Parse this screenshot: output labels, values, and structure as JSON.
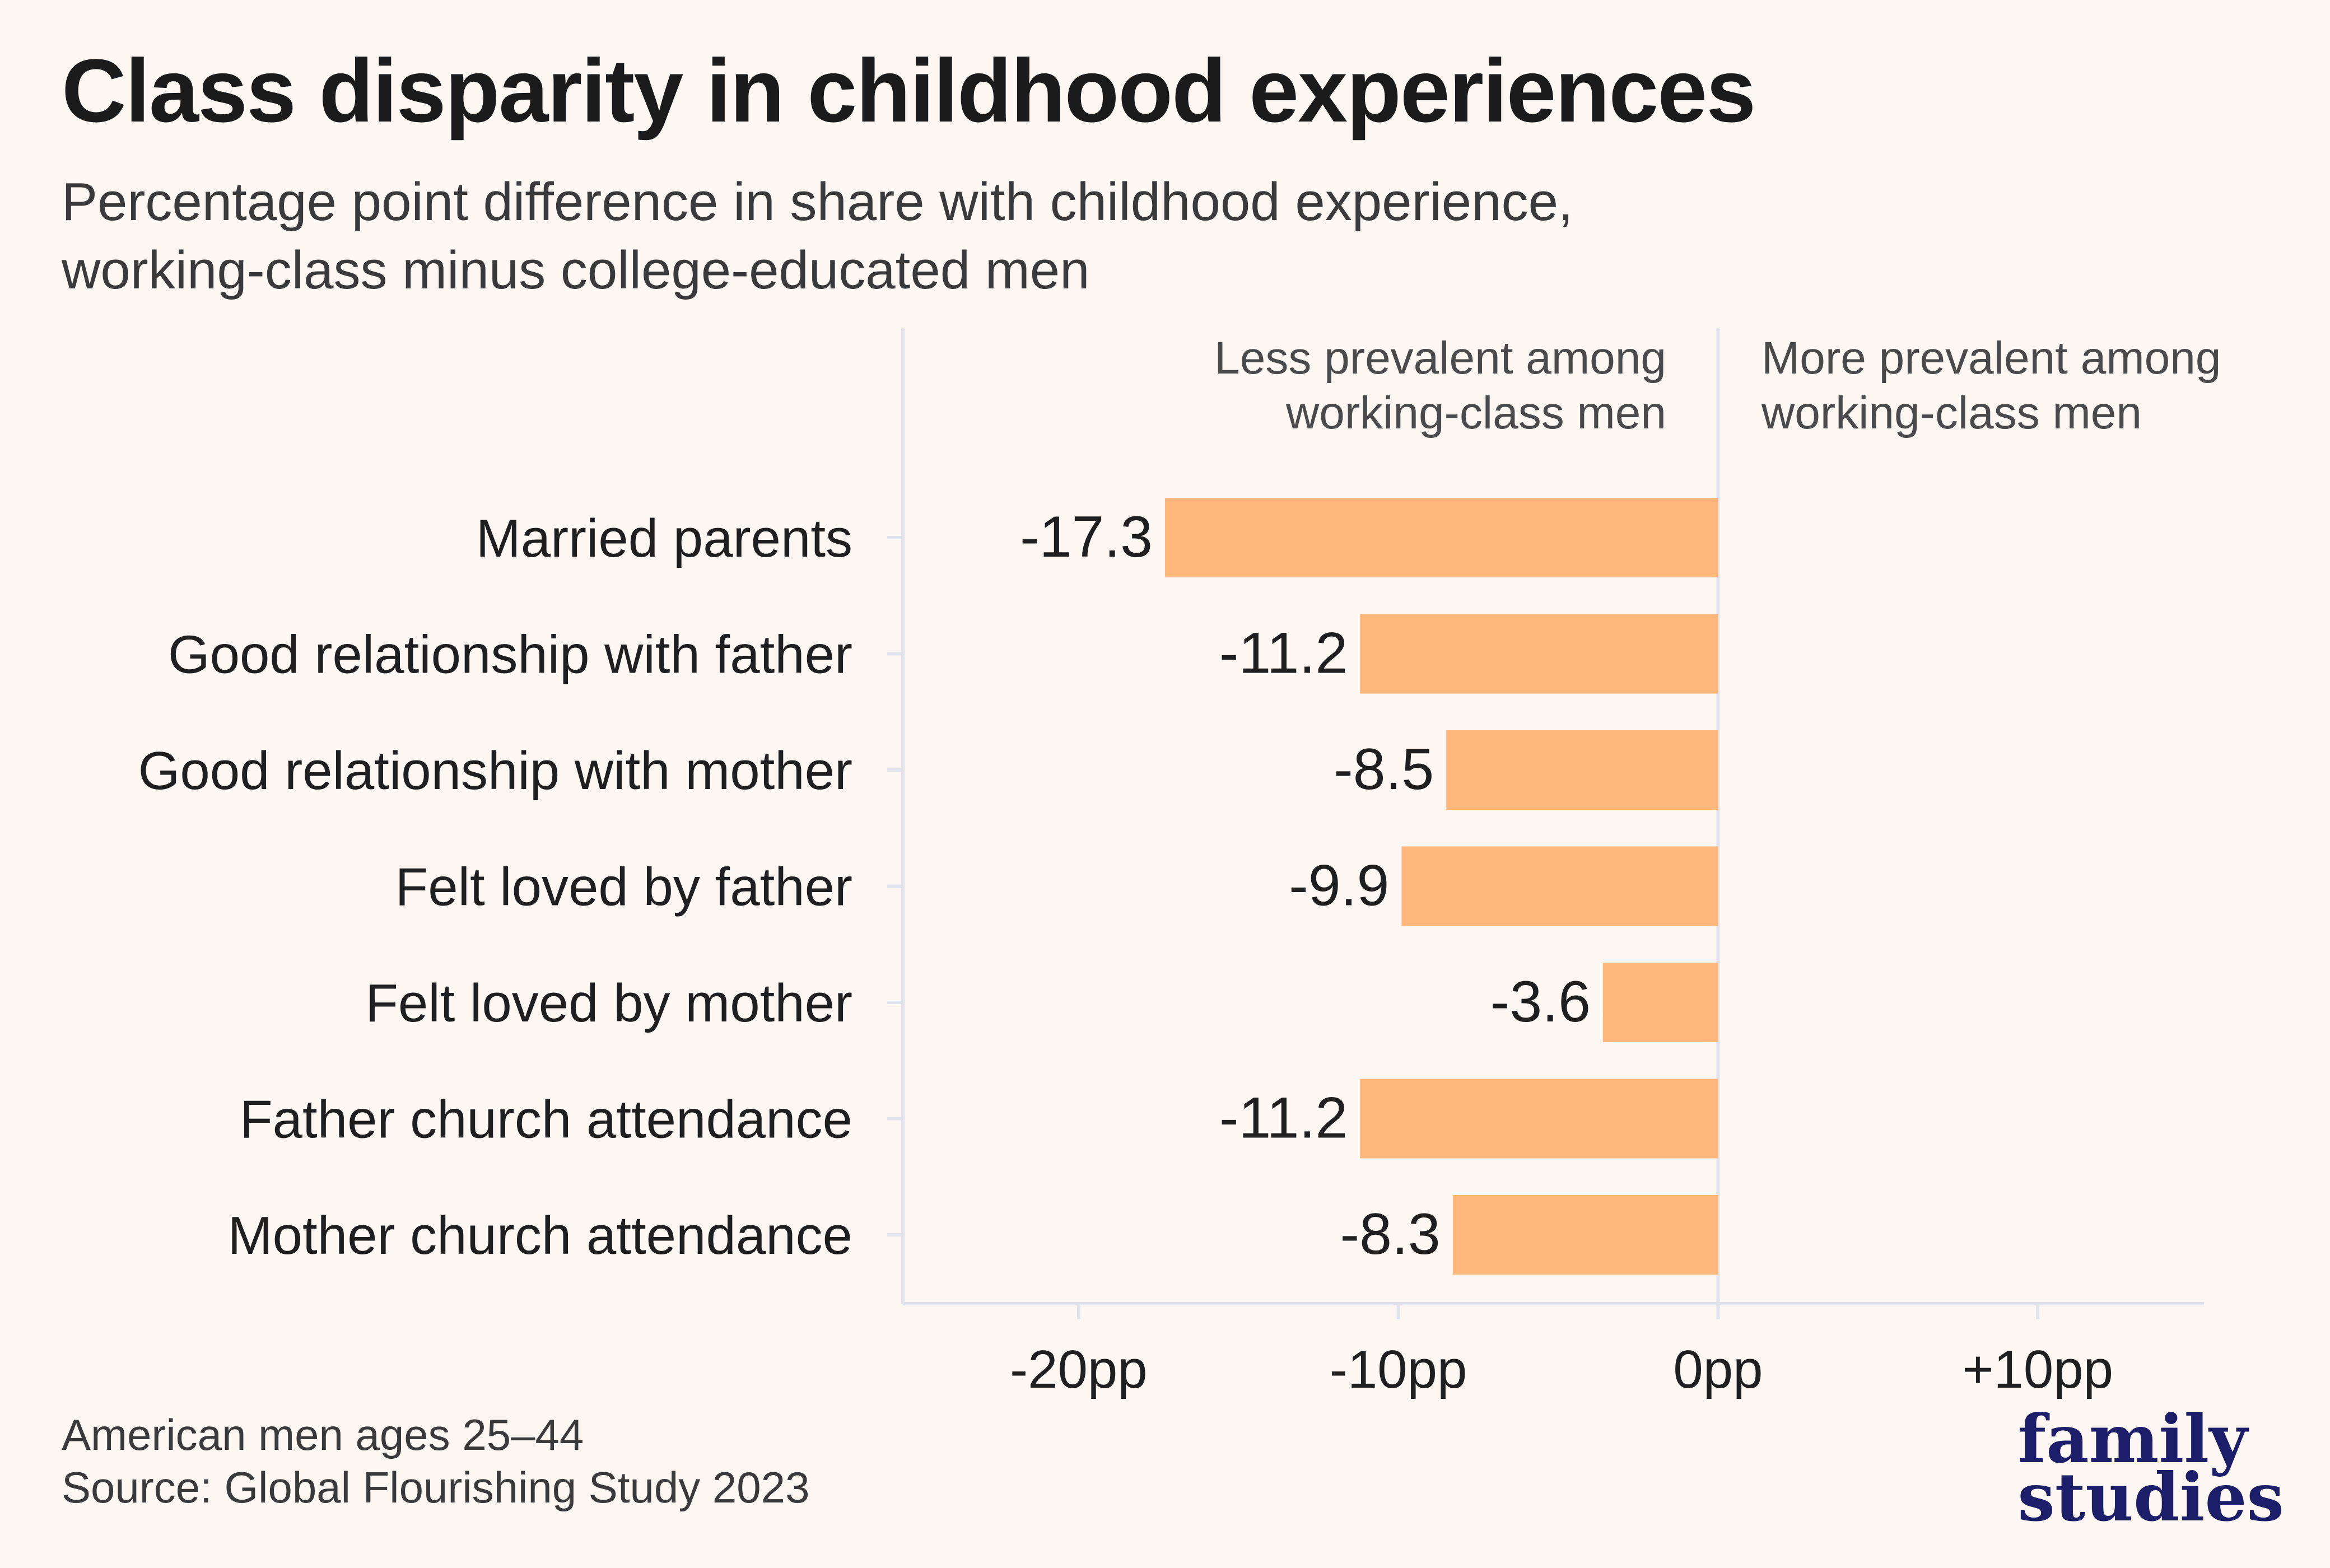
{
  "title": "Class disparity in childhood experiences",
  "subtitle_lines": [
    "Percentage point difference in share with childhood experience,",
    "working-class minus college-educated men"
  ],
  "annotations": {
    "left": [
      "Less prevalent among",
      "working-class men"
    ],
    "right": [
      "More prevalent among",
      "working-class men"
    ]
  },
  "footnote": {
    "population": "American men ages 25–44",
    "source": "Source: Global Flourishing Study 2023"
  },
  "logo": {
    "line1": "family",
    "line2": "studies"
  },
  "colors": {
    "bar": "#ffb77c",
    "axis": "#e1e3ed",
    "text": "#1f1f1f",
    "annotation": "#4a4a4a",
    "logo": "#1d1e6a",
    "background": "#fdf7f3"
  },
  "chart_data": {
    "type": "bar",
    "orientation": "horizontal",
    "categories": [
      "Married parents",
      "Good relationship with father",
      "Good relationship with mother",
      "Felt loved by father",
      "Felt loved by mother",
      "Father church attendance",
      "Mother church attendance"
    ],
    "values": [
      -17.3,
      -11.2,
      -8.5,
      -9.9,
      -3.6,
      -11.2,
      -8.3
    ],
    "value_labels": [
      "-17.3",
      "-11.2",
      "-8.5",
      "-9.9",
      "-3.6",
      "-11.2",
      "-8.3"
    ],
    "xlim": [
      -25.5,
      15.2
    ],
    "xticks": [
      -20,
      -10,
      0,
      10
    ],
    "xtick_labels": [
      "-20pp",
      "-10pp",
      "0pp",
      "+10pp"
    ],
    "zero_line": true,
    "grid": false,
    "legend": "none"
  }
}
